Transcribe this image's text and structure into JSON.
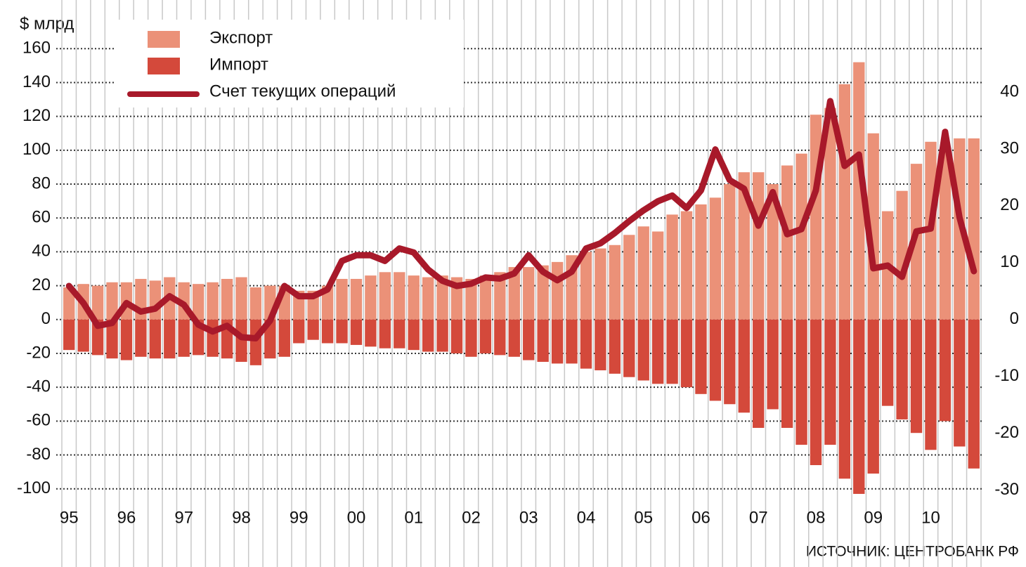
{
  "chart_data": {
    "type": "bar",
    "y_label": "$ млрд",
    "source": "ИСТОЧНИК: ЦЕНТРОБАНК РФ",
    "categories": [
      "95",
      null,
      null,
      null,
      "96",
      null,
      null,
      null,
      "97",
      null,
      null,
      null,
      "98",
      null,
      null,
      null,
      "99",
      null,
      null,
      null,
      "00",
      null,
      null,
      null,
      "01",
      null,
      null,
      null,
      "02",
      null,
      null,
      null,
      "03",
      null,
      null,
      null,
      "04",
      null,
      null,
      null,
      "05",
      null,
      null,
      null,
      "06",
      null,
      null,
      null,
      "07",
      null,
      null,
      null,
      "08",
      null,
      null,
      null,
      "09",
      null,
      null,
      null,
      "10",
      null,
      null,
      null
    ],
    "series": [
      {
        "name": "Экспорт",
        "type": "bar",
        "color": "#eb9178",
        "values": [
          19,
          21,
          20,
          22,
          22,
          24,
          23,
          25,
          22,
          21,
          22,
          24,
          25,
          19,
          20,
          20,
          17,
          17,
          20,
          24,
          24,
          26,
          28,
          28,
          26,
          25,
          26,
          25,
          24,
          26,
          28,
          31,
          31,
          32,
          34,
          38,
          40,
          42,
          44,
          50,
          55,
          52,
          62,
          64,
          68,
          72,
          80,
          87,
          87,
          80,
          91,
          98,
          121,
          125,
          139,
          152,
          110,
          64,
          76,
          92,
          105,
          100,
          107,
          107
        ]
      },
      {
        "name": "Импорт",
        "type": "bar",
        "color": "#d4493b",
        "values": [
          -18,
          -19,
          -21,
          -23,
          -24,
          -22,
          -23,
          -23,
          -22,
          -21,
          -22,
          -23,
          -25,
          -27,
          -23,
          -22,
          -14,
          -12,
          -14,
          -14,
          -15,
          -16,
          -17,
          -17,
          -18,
          -19,
          -19,
          -20,
          -22,
          -20,
          -21,
          -22,
          -24,
          -25,
          -26,
          -26,
          -29,
          -30,
          -32,
          -34,
          -36,
          -38,
          -38,
          -40,
          -44,
          -48,
          -50,
          -55,
          -64,
          -53,
          -64,
          -74,
          -86,
          -74,
          -94,
          -103,
          -91,
          -51,
          -59,
          -67,
          -77,
          -60,
          -75,
          -88
        ]
      },
      {
        "name": "Счет текущих операций",
        "type": "line",
        "axis": "y2",
        "color": "#a8192a",
        "values": [
          5.9,
          2.9,
          -1.1,
          -0.6,
          2.9,
          1.4,
          1.9,
          4.1,
          2.6,
          -0.9,
          -2.1,
          -1.1,
          -3.1,
          -3.3,
          -0.2,
          5.9,
          4.1,
          4.1,
          5.3,
          10.3,
          11.3,
          11.3,
          10.3,
          12.5,
          11.8,
          8.8,
          6.8,
          5.9,
          6.3,
          7.4,
          7.2,
          8.1,
          11.3,
          8.4,
          6.9,
          8.4,
          12.5,
          13.4,
          15.2,
          17.3,
          19.2,
          20.8,
          21.8,
          19.6,
          22.7,
          29.9,
          24.5,
          23,
          16.5,
          22.4,
          15,
          15.9,
          22.7,
          38.4,
          27,
          29,
          9,
          9.5,
          7.5,
          15.5,
          16,
          33,
          18,
          8.5
        ]
      }
    ],
    "ylim": [
      -108,
      168
    ],
    "yticks": [
      -100,
      -80,
      -60,
      -40,
      -20,
      0,
      20,
      40,
      60,
      80,
      100,
      120,
      140,
      160
    ],
    "y2lim": [
      -32.14,
      50
    ],
    "y2ticks": [
      -30,
      -20,
      -10,
      0,
      10,
      20,
      30,
      40
    ],
    "grid": true,
    "legend": "upper left"
  }
}
